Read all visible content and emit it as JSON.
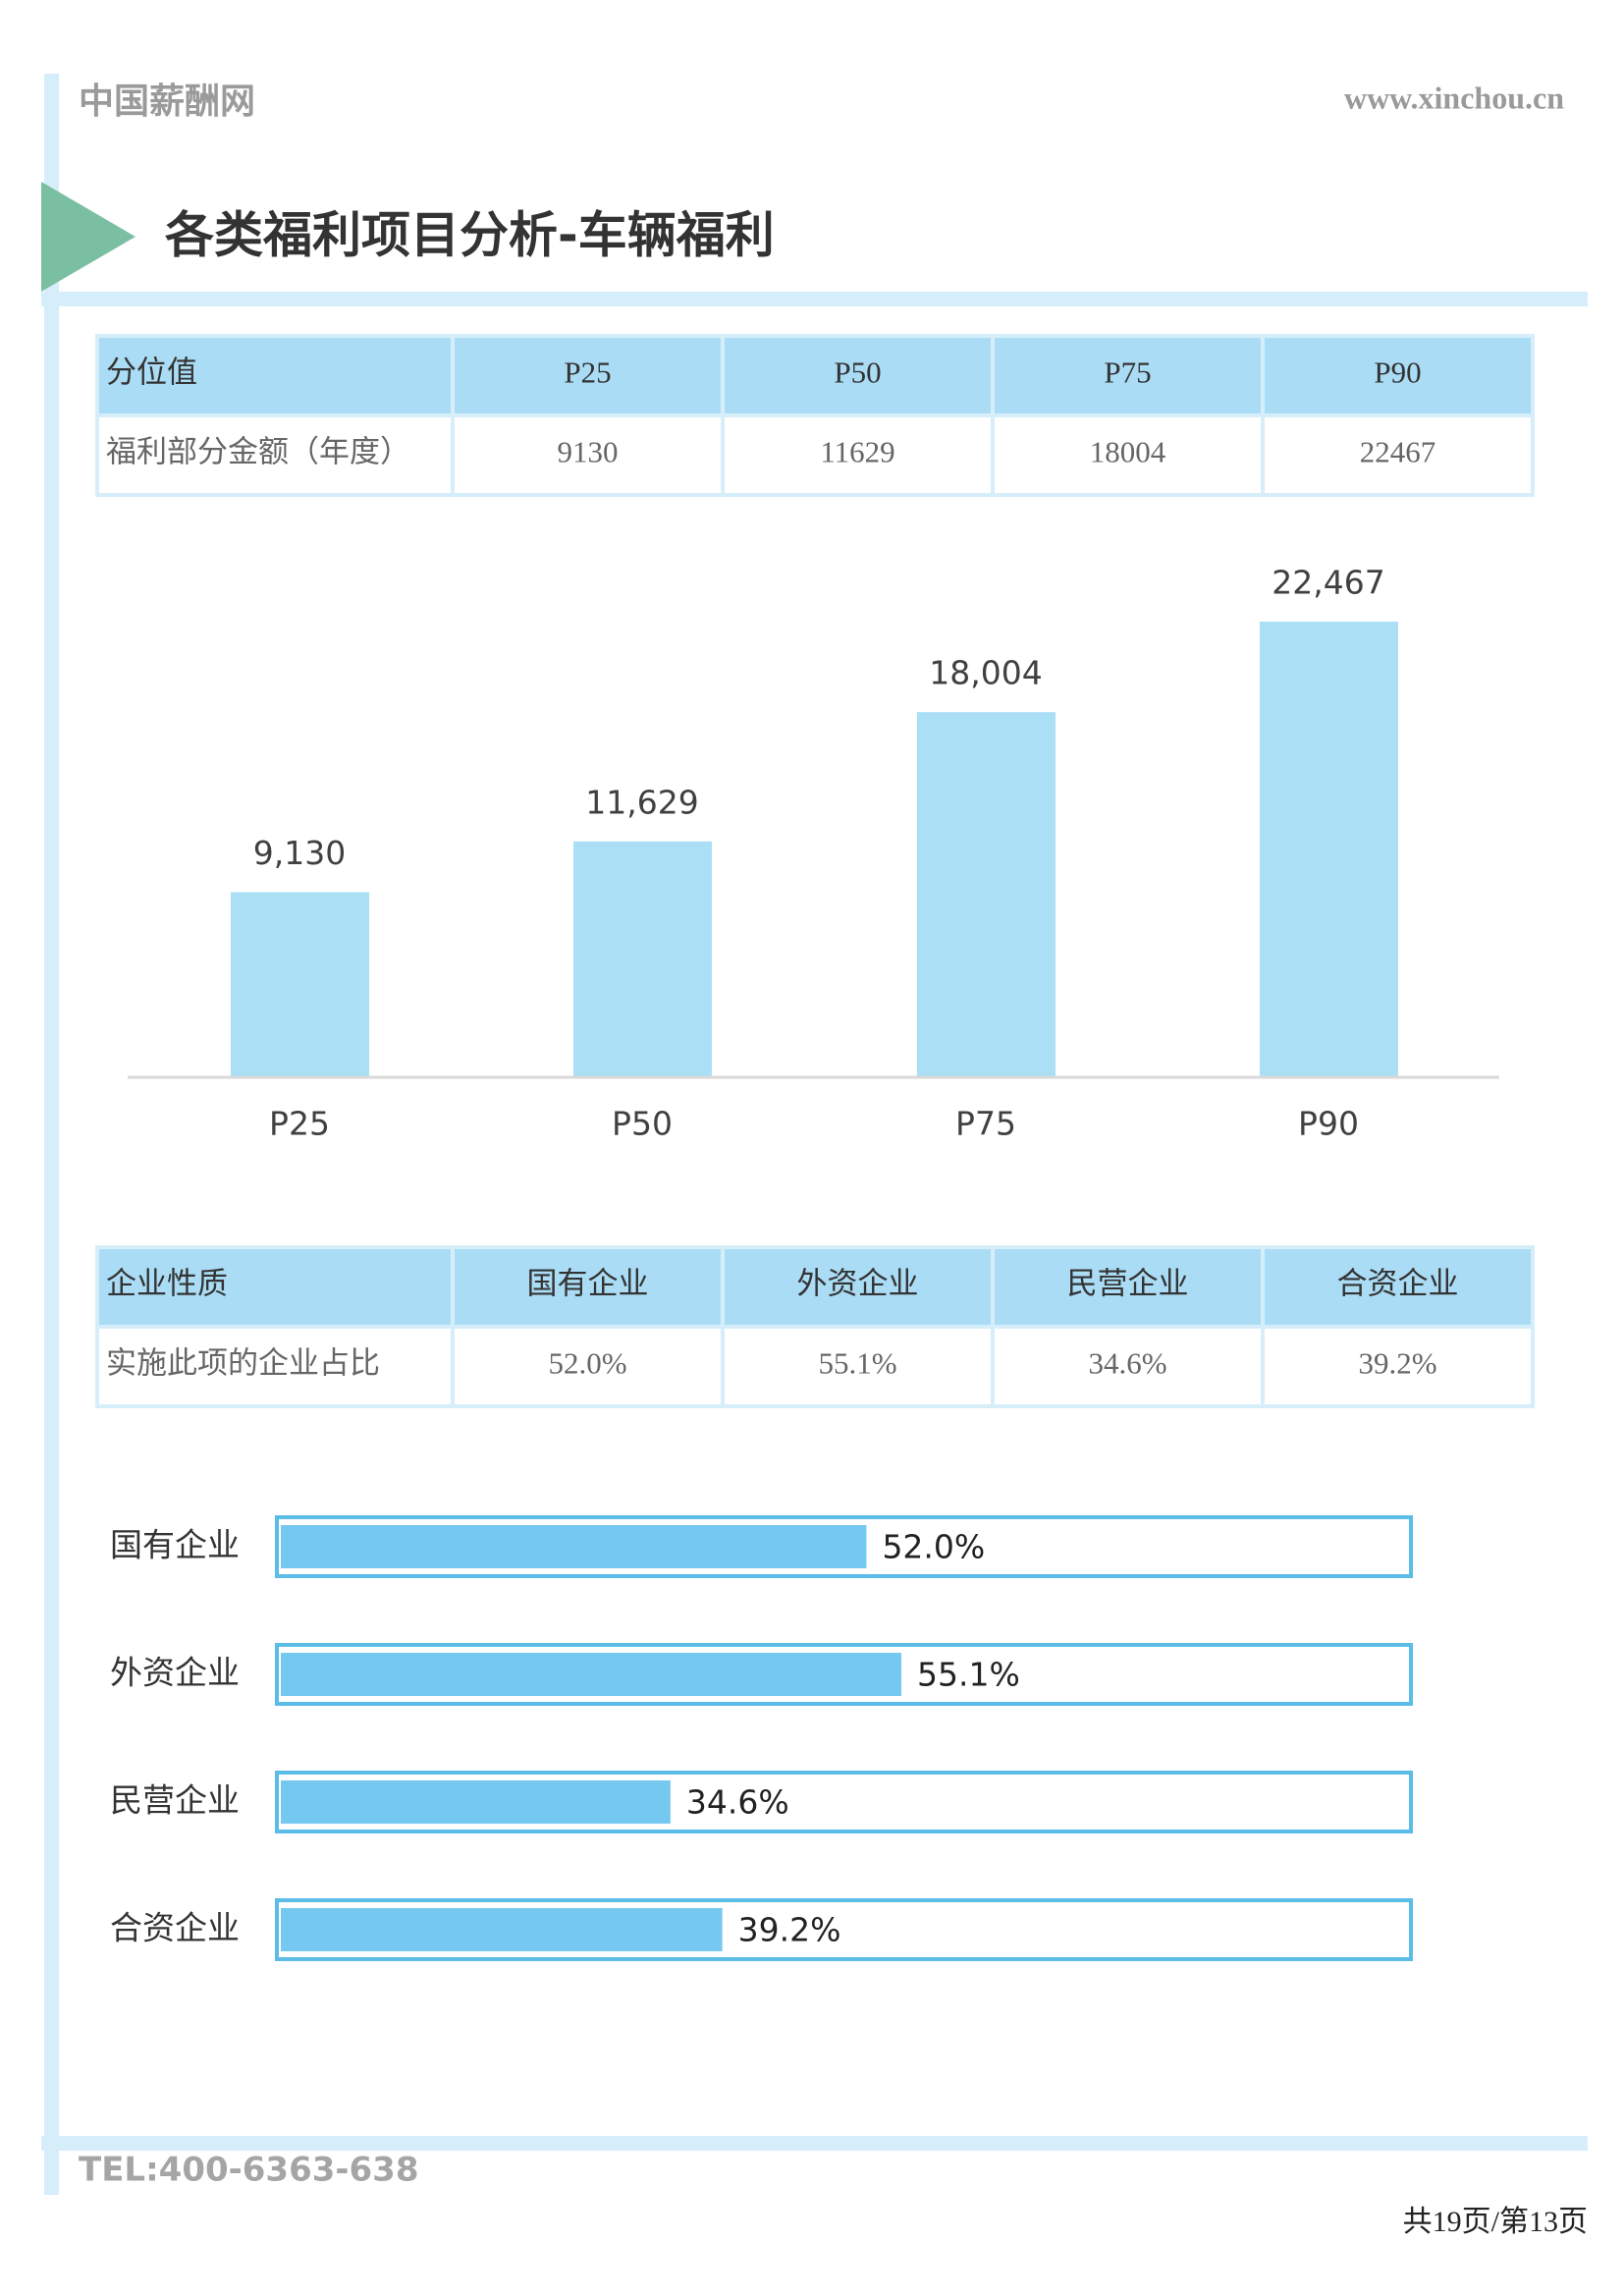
{
  "header": {
    "brand": "中国薪酬网",
    "url": "www.xinchou.cn",
    "title": "各类福利项目分析-车辆福利"
  },
  "tables": [
    {
      "header": [
        "分位值",
        "P25",
        "P50",
        "P75",
        "P90"
      ],
      "rows": [
        [
          "福利部分金额（年度）",
          "9130",
          "11629",
          "18004",
          "22467"
        ]
      ]
    },
    {
      "header": [
        "企业性质",
        "国有企业",
        "外资企业",
        "民营企业",
        "合资企业"
      ],
      "rows": [
        [
          "实施此项的企业占比",
          "52.0%",
          "55.1%",
          "34.6%",
          "39.2%"
        ]
      ]
    }
  ],
  "chart_data": [
    {
      "type": "bar",
      "categories": [
        "P25",
        "P50",
        "P75",
        "P90"
      ],
      "values": [
        9130,
        11629,
        18004,
        22467
      ],
      "value_labels": [
        "9,130",
        "11,629",
        "18,004",
        "22,467"
      ],
      "color": "#abdff5"
    },
    {
      "type": "hbar",
      "categories": [
        "国有企业",
        "外资企业",
        "民营企业",
        "合资企业"
      ],
      "values": [
        52.0,
        55.1,
        34.6,
        39.2
      ],
      "value_labels": [
        "52.0%",
        "55.1%",
        "34.6%",
        "39.2%"
      ],
      "xlim": [
        0,
        100
      ],
      "color": "#75c9f0",
      "frame_color": "#5bbce8"
    }
  ],
  "footer": {
    "tel": "TEL:400-6363-638",
    "page": "共19页/第13页"
  }
}
